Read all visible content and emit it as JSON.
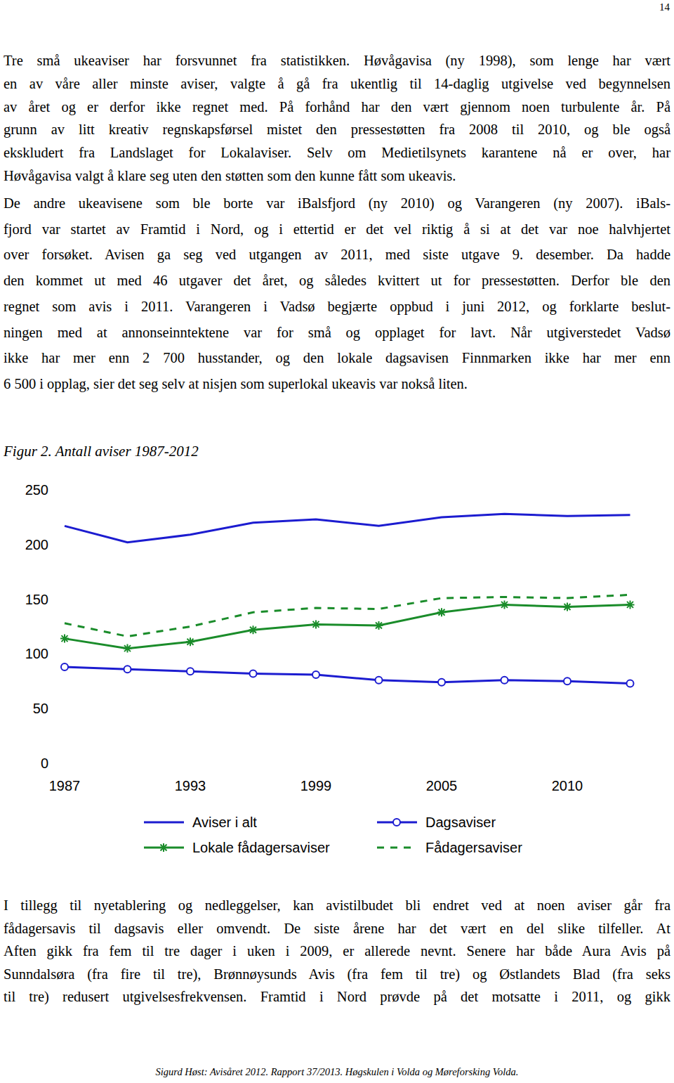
{
  "page_number": "14",
  "text_before": [
    [
      "Tre små ukeaviser har forsvunnet fra statistikken. Høvågavisa (ny 1998), som lenge har vært",
      "en av våre aller minste aviser, valgte å gå fra ukentlig til 14-daglig utgivelse ved begynnelsen",
      "av året og er derfor ikke regnet med. På forhånd har den vært gjennom noen turbulente år. På",
      "grunn av litt kreativ regnskapsførsel mistet den pressestøtten fra 2008 til 2010, og ble også",
      "ekskludert fra Landslaget for Lokalaviser. Selv om Medietilsynets karantene nå er over, har",
      "Høvågavisa valgt å klare seg uten den støtten som den kunne fått som ukeavis."
    ],
    [
      "De andre ukeavisene som ble borte var iBalsfjord (ny 2010) og Varangeren (ny 2007). iBals-",
      "fjord var startet av Framtid i Nord, og i ettertid er det vel riktig å si at det var noe halvhjertet",
      "over forsøket. Avisen ga seg ved utgangen av 2011, med siste utgave 9. desember. Da hadde",
      "den kommet ut med 46 utgaver det året, og således kvittert ut for pressestøtten. Derfor ble den",
      "regnet som avis i 2011. Varangeren i Vadsø begjærte oppbud i juni 2012, og forklarte beslut-",
      "ningen med at annonseinntektene var for små og opplaget for lavt. Når utgiverstedet Vadsø",
      "ikke har mer enn 2 700 husstander, og den lokale dagsavisen Finnmarken ikke har mer enn",
      "6 500 i opplag, sier det seg selv at nisjen som superlokal ukeavis var nokså liten."
    ]
  ],
  "figure_caption": "Figur 2. Antall aviser 1987-2012",
  "text_after": [
    [
      "I tillegg til nyetablering og nedleggelser, kan avistilbudet bli endret ved at noen aviser går fra",
      "fådagersavis til dagsavis eller omvendt. De siste årene har det vært en del slike tilfeller. At",
      "Aften gikk fra fem til tre dager i uken i 2009, er allerede nevnt. Senere har både Aura Avis på",
      "Sunndalsøra (fra fire til tre), Brønnøysunds Avis (fra fem til tre) og Østlandets Blad (fra seks",
      "til tre) redusert utgivelsesfrekvensen. Framtid i Nord prøvde på det motsatte i 2011, og gikk"
    ]
  ],
  "footer": "Sigurd Høst: Avisåret 2012. Rapport 37/2013. Høgskulen i Volda og Møreforsking Volda.",
  "chart_data": {
    "type": "line",
    "categories": [
      "1987",
      null,
      "1993",
      null,
      "1999",
      null,
      "2005",
      null,
      "2010",
      null
    ],
    "series": [
      {
        "name": "Aviser i alt",
        "color": "#1c1cd0",
        "marker": "none",
        "line_style": "solid",
        "values": [
          217,
          202,
          209,
          220,
          223,
          217,
          225,
          228,
          226,
          227
        ]
      },
      {
        "name": "Dagsaviser",
        "color": "#1c1cd0",
        "marker": "circle",
        "line_style": "solid",
        "values": [
          88,
          86,
          84,
          82,
          81,
          76,
          74,
          76,
          75,
          73
        ]
      },
      {
        "name": "Lokale fådagersaviser",
        "color": "#1a8c2a",
        "marker": "asterisk",
        "line_style": "solid",
        "values": [
          114,
          105,
          111,
          122,
          127,
          126,
          138,
          145,
          143,
          145
        ]
      },
      {
        "name": "Fådagersaviser",
        "color": "#1a8c2a",
        "marker": "none",
        "line_style": "dashed",
        "values": [
          128,
          116,
          125,
          138,
          142,
          141,
          151,
          152,
          151,
          154
        ]
      }
    ],
    "ylim": [
      0,
      250
    ],
    "yticks": [
      0,
      50,
      100,
      150,
      200,
      250
    ],
    "grid": false,
    "legend": "bottom"
  }
}
